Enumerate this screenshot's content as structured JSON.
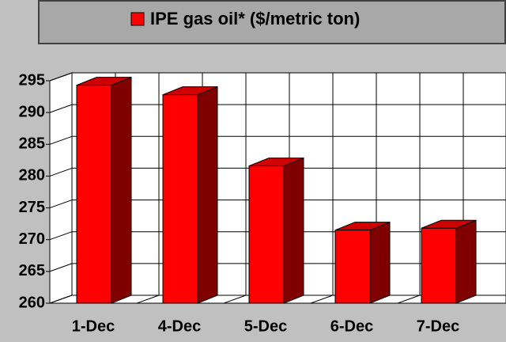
{
  "chart_data": {
    "type": "bar3d",
    "title": "IPE gas oil* ($/metric ton)",
    "categories": [
      "1-Dec",
      "4-Dec",
      "5-Dec",
      "6-Dec",
      "7-Dec"
    ],
    "series": [
      {
        "name": "IPE gas oil* ($/metric ton)",
        "color": "#ff0000",
        "values": [
          294.3,
          292.8,
          281.6,
          271.5,
          271.8
        ]
      }
    ],
    "ylim": [
      260,
      295
    ],
    "yticks": [
      260,
      265,
      270,
      275,
      280,
      285,
      290,
      295
    ],
    "grid": true,
    "legend": "top"
  }
}
